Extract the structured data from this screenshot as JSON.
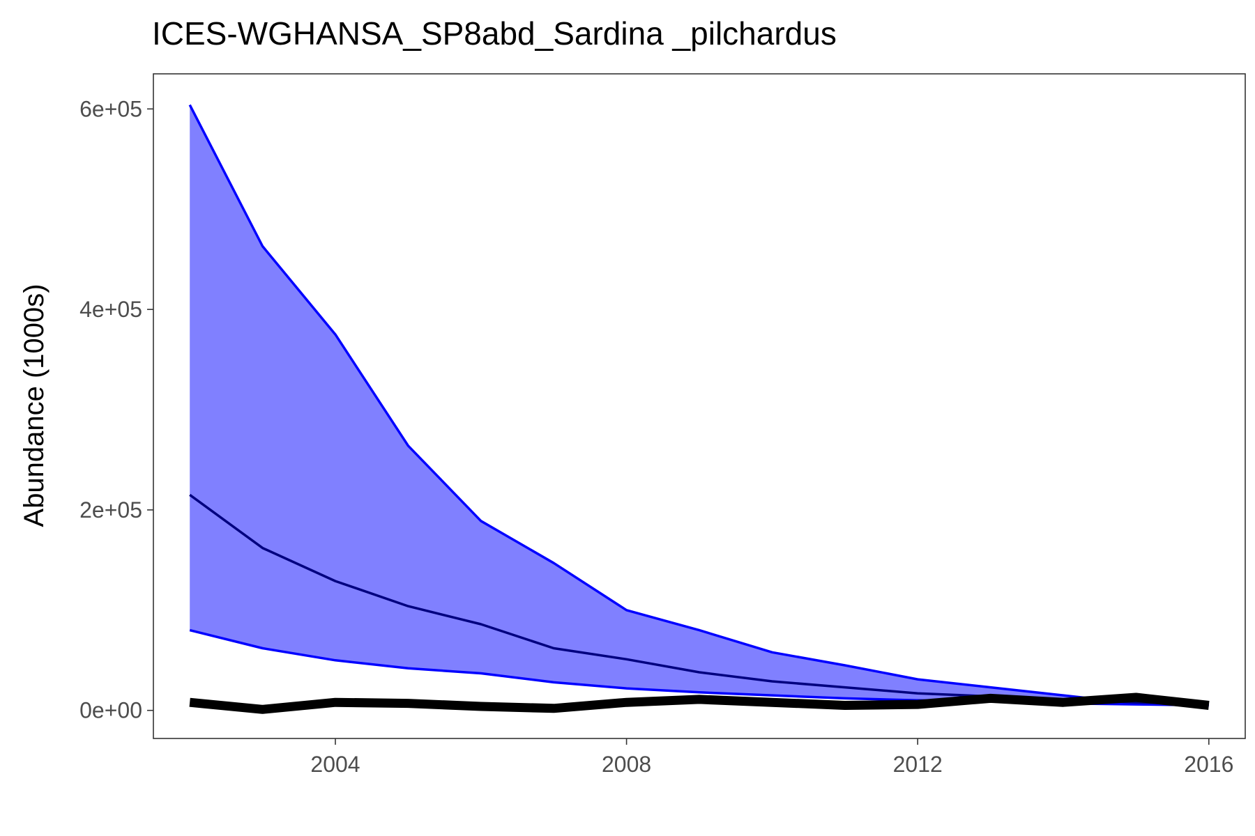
{
  "chart_data": {
    "type": "line",
    "title": "ICES-WGHANSA_SP8abd_Sardina _pilchardus",
    "xlabel": "",
    "ylabel": "Abundance (1000s)",
    "xlim": [
      2001.5,
      2016.5
    ],
    "ylim": [
      -28000,
      635000
    ],
    "x_ticks": [
      2004,
      2008,
      2012,
      2016
    ],
    "x_tick_labels": [
      "2004",
      "2008",
      "2012",
      "2016"
    ],
    "y_ticks": [
      0,
      200000,
      400000,
      600000
    ],
    "y_tick_labels": [
      "0e+00",
      "2e+05",
      "4e+05",
      "6e+05"
    ],
    "grid": false,
    "legend": "none",
    "x": [
      2002,
      2003,
      2004,
      2005,
      2006,
      2007,
      2008,
      2009,
      2010,
      2011,
      2012,
      2013,
      2014,
      2015,
      2016
    ],
    "series": [
      {
        "role": "upper",
        "color": "#0000ff",
        "values": [
          604000,
          463000,
          375000,
          264000,
          189000,
          147000,
          100000,
          80000,
          58000,
          45000,
          31000,
          23000,
          15000,
          7000,
          6000
        ]
      },
      {
        "role": "median",
        "color": "#00007f",
        "values": [
          215000,
          162000,
          129000,
          104000,
          86000,
          62000,
          51000,
          38000,
          29000,
          23000,
          17000,
          14000,
          11000,
          8000,
          6000
        ]
      },
      {
        "role": "lower",
        "color": "#0000ff",
        "values": [
          80000,
          62000,
          50000,
          42000,
          37000,
          28000,
          22000,
          18000,
          15000,
          12000,
          10000,
          9000,
          7000,
          6000,
          5000
        ]
      },
      {
        "role": "observed",
        "color": "#000000",
        "values": [
          8000,
          1000,
          8000,
          7000,
          4000,
          2000,
          8000,
          11000,
          8000,
          5000,
          6000,
          12000,
          8000,
          13000,
          5000
        ]
      }
    ],
    "band_fill": "#8080ff"
  }
}
